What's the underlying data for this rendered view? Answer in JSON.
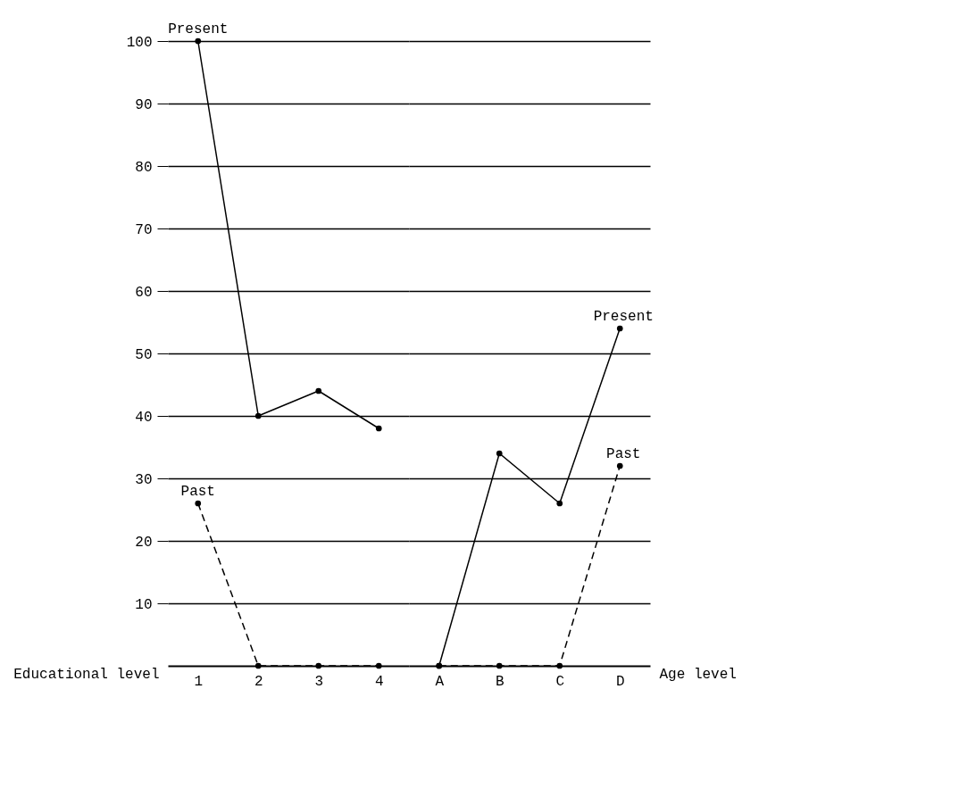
{
  "chart_data": [
    {
      "type": "line",
      "xlabel": "Educational level",
      "categories": [
        "1",
        "2",
        "3",
        "4"
      ],
      "ylim": [
        0,
        100
      ],
      "yticks": [
        10,
        20,
        30,
        40,
        50,
        60,
        70,
        80,
        90,
        100
      ],
      "grid": "y",
      "marker": "circle",
      "series": [
        {
          "name": "Present",
          "color": "#000000",
          "line_style": "solid",
          "values": [
            100,
            40,
            44,
            38
          ]
        },
        {
          "name": "Past",
          "color": "#000000",
          "line_style": "dashed",
          "values": [
            26,
            0,
            0,
            0
          ]
        }
      ]
    },
    {
      "type": "line",
      "xlabel": "Age level",
      "categories": [
        "A",
        "B",
        "C",
        "D"
      ],
      "ylim": [
        0,
        100
      ],
      "yticks": [
        10,
        20,
        30,
        40,
        50,
        60,
        70,
        80,
        90,
        100
      ],
      "grid": "y",
      "marker": "circle",
      "tick_labels": "x",
      "series": [
        {
          "name": "Present",
          "color": "#000000",
          "line_style": "solid",
          "values": [
            0,
            34,
            26,
            54
          ]
        },
        {
          "name": "Past",
          "color": "#000000",
          "line_style": "dashed",
          "values": [
            0,
            0,
            0,
            32
          ]
        }
      ]
    }
  ]
}
